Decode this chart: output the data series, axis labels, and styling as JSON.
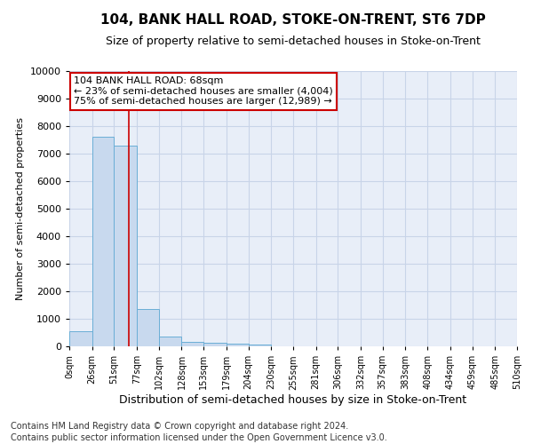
{
  "title": "104, BANK HALL ROAD, STOKE-ON-TRENT, ST6 7DP",
  "subtitle": "Size of property relative to semi-detached houses in Stoke-on-Trent",
  "xlabel": "Distribution of semi-detached houses by size in Stoke-on-Trent",
  "ylabel": "Number of semi-detached properties",
  "footnote1": "Contains HM Land Registry data © Crown copyright and database right 2024.",
  "footnote2": "Contains public sector information licensed under the Open Government Licence v3.0.",
  "bin_edges": [
    0,
    26,
    51,
    77,
    102,
    128,
    153,
    179,
    204,
    230,
    255,
    281,
    306,
    332,
    357,
    383,
    408,
    434,
    459,
    485,
    510
  ],
  "bar_heights": [
    550,
    7600,
    7300,
    1350,
    350,
    175,
    125,
    100,
    75,
    0,
    0,
    0,
    0,
    0,
    0,
    0,
    0,
    0,
    0,
    0
  ],
  "bar_color": "#c8d9ee",
  "bar_edge_color": "#6aaed6",
  "ylim": [
    0,
    10000
  ],
  "property_size": 68,
  "annotation_line1": "104 BANK HALL ROAD: 68sqm",
  "annotation_line2": "← 23% of semi-detached houses are smaller (4,004)",
  "annotation_line3": "75% of semi-detached houses are larger (12,989) →",
  "annotation_box_color": "#cc0000",
  "vline_color": "#cc0000",
  "grid_color": "#c8d4e8",
  "background_color": "#e8eef8",
  "xtick_labels": [
    "0sqm",
    "26sqm",
    "51sqm",
    "77sqm",
    "102sqm",
    "128sqm",
    "153sqm",
    "179sqm",
    "204sqm",
    "230sqm",
    "255sqm",
    "281sqm",
    "306sqm",
    "332sqm",
    "357sqm",
    "383sqm",
    "408sqm",
    "434sqm",
    "459sqm",
    "485sqm",
    "510sqm"
  ],
  "title_fontsize": 11,
  "subtitle_fontsize": 9,
  "ylabel_fontsize": 8,
  "xlabel_fontsize": 9,
  "ytick_fontsize": 8,
  "xtick_fontsize": 7,
  "annotation_fontsize": 8,
  "footnote_fontsize": 7
}
